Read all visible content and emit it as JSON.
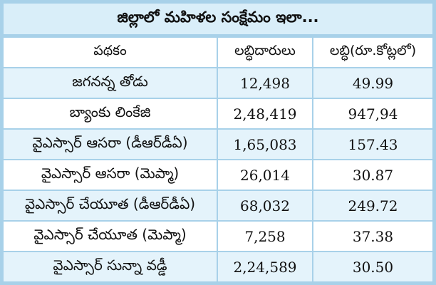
{
  "title": "జిల్లాలో మహిళల సంక్షేమం ఇలా...",
  "headers": [
    "పథకం",
    "లబ్ధిదారులు",
    "లబ్ధి(రూ.కోట్లలో)"
  ],
  "rows": [
    {
      "scheme": "జగనన్న తోడు",
      "beneficiaries": "12,498",
      "benefit": "49.99"
    },
    {
      "scheme": "బ్యాంకు లింకేజి",
      "beneficiaries": "2,48,419",
      "benefit": "947,94"
    },
    {
      "scheme": "వైఎస్సార్ ఆసరా (డీఆర్‌డీఏ)",
      "beneficiaries": "1,65,083",
      "benefit": "157.43"
    },
    {
      "scheme": "వైఎస్సార్ ఆసరా (మెప్మా)",
      "beneficiaries": "26,014",
      "benefit": "30.87"
    },
    {
      "scheme": "వైఎస్సార్ చేయూత (డీఆర్‌డీఏ)",
      "beneficiaries": "68,032",
      "benefit": "249.72"
    },
    {
      "scheme": "వైఎస్సార్ చేయూత (మెప్మా)",
      "beneficiaries": "7,258",
      "benefit": "37.38"
    },
    {
      "scheme": "వైఎస్సార్ సున్నా వడ్డీ",
      "beneficiaries": "2,24,589",
      "benefit": "30.50"
    }
  ]
}
